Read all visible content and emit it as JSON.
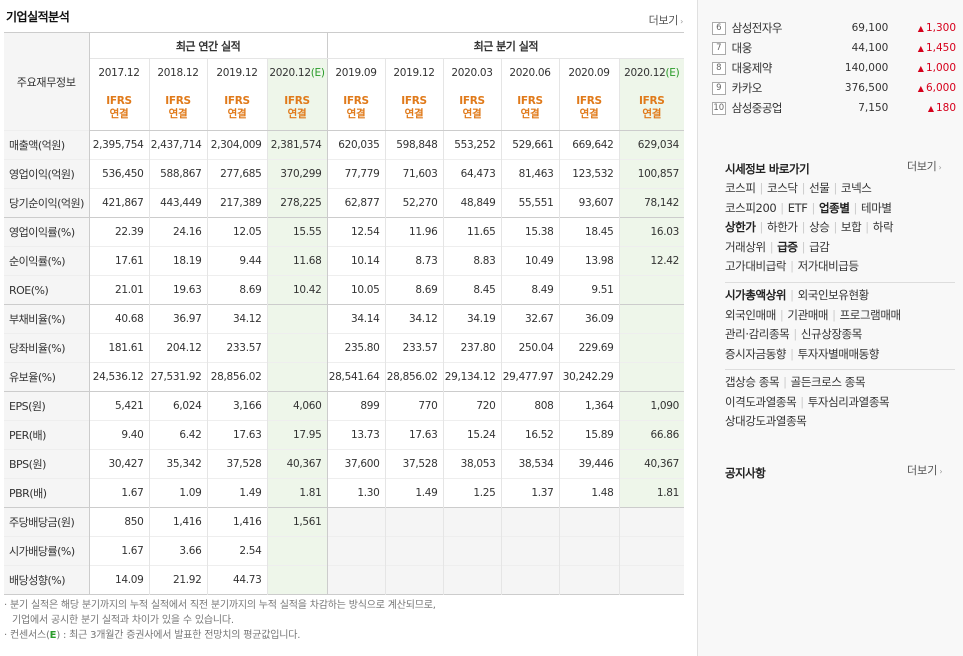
{
  "section_title": "기업실적분석",
  "more_label": "더보기",
  "table": {
    "row_header": "주요재무정보",
    "annual_group": "최근 연간 실적",
    "quarter_group": "최근 분기 실적",
    "periods": [
      "2017.12",
      "2018.12",
      "2019.12",
      "2020.12(E)",
      "2019.09",
      "2019.12",
      "2020.03",
      "2020.06",
      "2020.09",
      "2020.12(E)"
    ],
    "basis_top": "IFRS",
    "basis_bottom": "연결",
    "rows": [
      {
        "label": "매출액(억원)",
        "values": [
          "2,395,754",
          "2,437,714",
          "2,304,009",
          "2,381,574",
          "620,035",
          "598,848",
          "553,252",
          "529,661",
          "669,642",
          "629,034"
        ]
      },
      {
        "label": "영업이익(억원)",
        "values": [
          "536,450",
          "588,867",
          "277,685",
          "370,299",
          "77,779",
          "71,603",
          "64,473",
          "81,463",
          "123,532",
          "100,857"
        ]
      },
      {
        "label": "당기순이익(억원)",
        "values": [
          "421,867",
          "443,449",
          "217,389",
          "278,225",
          "62,877",
          "52,270",
          "48,849",
          "55,551",
          "93,607",
          "78,142"
        ]
      },
      {
        "label": "영업이익률(%)",
        "values": [
          "22.39",
          "24.16",
          "12.05",
          "15.55",
          "12.54",
          "11.96",
          "11.65",
          "15.38",
          "18.45",
          "16.03"
        ]
      },
      {
        "label": "순이익률(%)",
        "values": [
          "17.61",
          "18.19",
          "9.44",
          "11.68",
          "10.14",
          "8.73",
          "8.83",
          "10.49",
          "13.98",
          "12.42"
        ]
      },
      {
        "label": "ROE(%)",
        "values": [
          "21.01",
          "19.63",
          "8.69",
          "10.42",
          "10.05",
          "8.69",
          "8.45",
          "8.49",
          "9.51",
          ""
        ]
      },
      {
        "label": "부채비율(%)",
        "values": [
          "40.68",
          "36.97",
          "34.12",
          "",
          "34.14",
          "34.12",
          "34.19",
          "32.67",
          "36.09",
          ""
        ]
      },
      {
        "label": "당좌비율(%)",
        "values": [
          "181.61",
          "204.12",
          "233.57",
          "",
          "235.80",
          "233.57",
          "237.80",
          "250.04",
          "229.69",
          ""
        ]
      },
      {
        "label": "유보율(%)",
        "values": [
          "24,536.12",
          "27,531.92",
          "28,856.02",
          "",
          "28,541.64",
          "28,856.02",
          "29,134.12",
          "29,477.97",
          "30,242.29",
          ""
        ]
      },
      {
        "label": "EPS(원)",
        "values": [
          "5,421",
          "6,024",
          "3,166",
          "4,060",
          "899",
          "770",
          "720",
          "808",
          "1,364",
          "1,090"
        ]
      },
      {
        "label": "PER(배)",
        "values": [
          "9.40",
          "6.42",
          "17.63",
          "17.95",
          "13.73",
          "17.63",
          "15.24",
          "16.52",
          "15.89",
          "66.86"
        ]
      },
      {
        "label": "BPS(원)",
        "values": [
          "30,427",
          "35,342",
          "37,528",
          "40,367",
          "37,600",
          "37,528",
          "38,053",
          "38,534",
          "39,446",
          "40,367"
        ]
      },
      {
        "label": "PBR(배)",
        "values": [
          "1.67",
          "1.09",
          "1.49",
          "1.81",
          "1.30",
          "1.49",
          "1.25",
          "1.37",
          "1.48",
          "1.81"
        ]
      },
      {
        "label": "주당배당금(원)",
        "values": [
          "850",
          "1,416",
          "1,416",
          "1,561",
          "",
          "",
          "",
          "",
          "",
          ""
        ]
      },
      {
        "label": "시가배당률(%)",
        "values": [
          "1.67",
          "3.66",
          "2.54",
          "",
          "",
          "",
          "",
          "",
          "",
          ""
        ]
      },
      {
        "label": "배당성향(%)",
        "values": [
          "14.09",
          "21.92",
          "44.73",
          "",
          "",
          "",
          "",
          "",
          "",
          ""
        ]
      }
    ]
  },
  "notes": {
    "line1": "분기 실적은 해당 분기까지의 누적 실적에서 직전 분기까지의 누적 실적을 차감하는 방식으로 계산되므로,",
    "line2": "기업에서 공시한 분기 실적과 차이가 있을 수 있습니다.",
    "line3_prefix": "컨센서스(",
    "line3_e": "E",
    "line3_suffix": ") : 최근 3개월간 증권사에서 발표한 전망치의 평균값입니다."
  },
  "rank_list": [
    {
      "rank": "6",
      "name": "삼성전자우",
      "price": "69,100",
      "change": "1,300"
    },
    {
      "rank": "7",
      "name": "대웅",
      "price": "44,100",
      "change": "1,450"
    },
    {
      "rank": "8",
      "name": "대웅제약",
      "price": "140,000",
      "change": "1,000"
    },
    {
      "rank": "9",
      "name": "카카오",
      "price": "376,500",
      "change": "6,000"
    },
    {
      "rank": "10",
      "name": "삼성중공업",
      "price": "7,150",
      "change": "180"
    }
  ],
  "quick": {
    "title": "시세정보 바로가기",
    "more": "더보기",
    "group1": [
      [
        {
          "t": "코스피"
        },
        {
          "t": "코스닥"
        },
        {
          "t": "선물"
        },
        {
          "t": "코넥스"
        }
      ],
      [
        {
          "t": "코스피200"
        },
        {
          "t": "ETF"
        },
        {
          "t": "업종별",
          "b": true
        },
        {
          "t": "테마별"
        }
      ],
      [
        {
          "t": "상한가",
          "b": true
        },
        {
          "t": "하한가"
        },
        {
          "t": "상승"
        },
        {
          "t": "보합"
        },
        {
          "t": "하락"
        }
      ],
      [
        {
          "t": "거래상위"
        },
        {
          "t": "급증",
          "b": true
        },
        {
          "t": "급감"
        }
      ],
      [
        {
          "t": "고가대비급락"
        },
        {
          "t": "저가대비급등"
        }
      ]
    ],
    "group2": [
      [
        {
          "t": "시가총액상위",
          "b": true
        },
        {
          "t": "외국인보유현황"
        }
      ],
      [
        {
          "t": "외국인매매"
        },
        {
          "t": "기관매매"
        },
        {
          "t": "프로그램매매"
        }
      ],
      [
        {
          "t": "관리·감리종목"
        },
        {
          "t": "신규상장종목"
        }
      ],
      [
        {
          "t": "증시자금동향"
        },
        {
          "t": "투자자별매매동향"
        }
      ]
    ],
    "group3": [
      [
        {
          "t": "갭상승 종목"
        },
        {
          "t": "골든크로스 종목"
        }
      ],
      [
        {
          "t": "이격도과열종목"
        },
        {
          "t": "투자심리과열종목"
        }
      ],
      [
        {
          "t": "상대강도과열종목"
        }
      ]
    ]
  },
  "notice": {
    "title": "공지사항",
    "more": "더보기"
  },
  "colors": {
    "rise": "#d6001c",
    "ifrs": "#e07a1a",
    "consensus": "#2a9b2a",
    "consensus_bg": "#eef6ea"
  }
}
